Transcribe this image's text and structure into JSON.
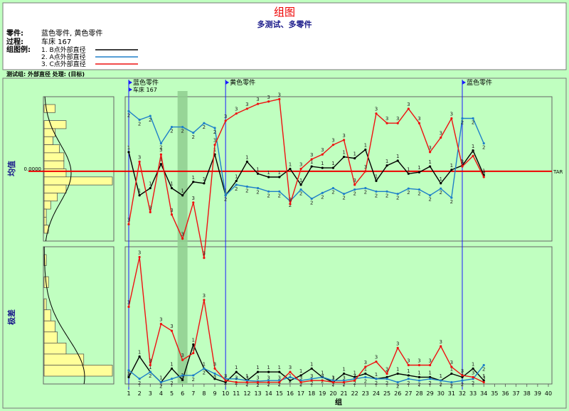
{
  "header": {
    "title": "组图",
    "subtitle": "多测试、多零件",
    "rows": [
      {
        "label": "零件:",
        "value": "蓝色零件, 黄色零件"
      },
      {
        "label": "过程:",
        "value": "车床 167"
      },
      {
        "label": "组图例:",
        "value": ""
      }
    ],
    "legend": [
      {
        "label": "1. B点外部直径",
        "color": "#000000"
      },
      {
        "label": "2. A点外部直径",
        "color": "#1e7fc8"
      },
      {
        "label": "3. C点外部直径",
        "color": "#ee1111"
      }
    ]
  },
  "info_bar": "测试组: 外部直径 处理: (目标)",
  "colors": {
    "frame": "#7a7a7a",
    "header_bg": "#ffffff",
    "plot_bg": "#c0ffc0",
    "highlight": "#8fce8f",
    "target_line": "#ee0000",
    "marker_line": "#1a1aff",
    "histogram": "#ffff99"
  },
  "chart_data": [
    {
      "type": "line",
      "name": "mean-chart",
      "ylabel": "均值",
      "target_value": "0.0000",
      "target_label": "TAR",
      "ylim": [
        -1.45,
        1.55
      ],
      "x": [
        1,
        2,
        3,
        4,
        5,
        6,
        7,
        8,
        9,
        10,
        11,
        12,
        13,
        14,
        15,
        16,
        17,
        18,
        19,
        20,
        21,
        22,
        23,
        24,
        25,
        26,
        27,
        28,
        29,
        30,
        31,
        32,
        33,
        34
      ],
      "series": [
        {
          "name": "1. B点外部直径",
          "point_label": "1",
          "color": "#000000",
          "values": [
            0.4,
            -0.5,
            -0.35,
            0.15,
            -0.35,
            -0.5,
            -0.22,
            -0.25,
            0.35,
            -0.5,
            -0.2,
            0.2,
            -0.05,
            -0.12,
            -0.12,
            0.05,
            -0.28,
            0.1,
            0.07,
            0.07,
            0.3,
            0.27,
            0.45,
            -0.2,
            0.12,
            0.22,
            -0.05,
            -0.02,
            0.1,
            -0.25,
            0.03,
            0.12,
            0.43,
            -0.08
          ]
        },
        {
          "name": "2. A点外部直径",
          "point_label": "2",
          "color": "#1e7fc8",
          "values": [
            1.25,
            1.07,
            1.15,
            0.58,
            0.92,
            0.92,
            0.8,
            1.0,
            0.9,
            -0.5,
            -0.28,
            -0.32,
            -0.35,
            -0.42,
            -0.42,
            -0.62,
            -0.38,
            -0.57,
            -0.45,
            -0.35,
            -0.47,
            -0.38,
            -0.35,
            -0.42,
            -0.42,
            -0.47,
            -0.36,
            -0.38,
            -0.5,
            -0.36,
            -0.55,
            1.1,
            1.1,
            0.58
          ]
        },
        {
          "name": "3. C点外部直径",
          "point_label": "3",
          "color": "#ee1111",
          "values": [
            -1.1,
            0.2,
            -0.85,
            0.35,
            -0.9,
            -1.4,
            -0.65,
            -1.8,
            0.55,
            1.05,
            1.2,
            1.3,
            1.4,
            1.45,
            1.5,
            -0.68,
            0.05,
            0.25,
            0.35,
            0.55,
            0.65,
            -0.28,
            0.0,
            1.2,
            1.0,
            1.0,
            1.3,
            1.0,
            0.4,
            0.7,
            1.1,
            0.1,
            0.32,
            -0.12
          ]
        }
      ]
    },
    {
      "type": "line",
      "name": "range-chart",
      "ylabel": "极差",
      "ylim": [
        0,
        4.0
      ],
      "x": [
        1,
        2,
        3,
        4,
        5,
        6,
        7,
        8,
        9,
        10,
        11,
        12,
        13,
        14,
        15,
        16,
        17,
        18,
        19,
        20,
        21,
        22,
        23,
        24,
        25,
        26,
        27,
        28,
        29,
        30,
        31,
        32,
        33,
        34
      ],
      "series": [
        {
          "name": "1. B点外部直径",
          "point_label": "1",
          "color": "#000000",
          "values": [
            0.2,
            0.8,
            0.35,
            0.05,
            0.45,
            0.12,
            1.15,
            0.45,
            0.15,
            0.05,
            0.35,
            0.1,
            0.35,
            0.35,
            0.35,
            0.1,
            0.25,
            0.45,
            0.2,
            0.05,
            0.3,
            0.2,
            0.3,
            0.15,
            0.2,
            0.3,
            0.25,
            0.2,
            0.2,
            0.1,
            0.3,
            0.2,
            0.45,
            0.1
          ]
        },
        {
          "name": "2. A点外部直径",
          "point_label": "2",
          "color": "#1e7fc8",
          "values": [
            0.4,
            0.15,
            0.35,
            0.05,
            0.15,
            0.25,
            0.25,
            0.45,
            0.3,
            0.15,
            0.15,
            0.1,
            0.08,
            0.1,
            0.1,
            0.2,
            0.1,
            0.15,
            0.2,
            0.1,
            0.1,
            0.15,
            0.2,
            0.15,
            0.15,
            0.05,
            0.15,
            0.1,
            0.15,
            0.1,
            0.05,
            0.1,
            0.15,
            0.55
          ]
        },
        {
          "name": "3. C点外部直径",
          "point_label": "3",
          "color": "#ee1111",
          "values": [
            2.25,
            3.7,
            0.55,
            1.75,
            1.55,
            0.7,
            0.9,
            2.45,
            0.45,
            0.1,
            0.05,
            0.05,
            0.05,
            0.05,
            0.05,
            0.35,
            0.05,
            0.1,
            0.1,
            0.05,
            0.05,
            0.1,
            0.5,
            0.65,
            0.3,
            1.05,
            0.55,
            0.55,
            0.55,
            1.1,
            0.5,
            0.25,
            0.2,
            0.05
          ]
        }
      ]
    }
  ],
  "x_axis": {
    "label": "组",
    "ticks": [
      "1",
      "2",
      "3",
      "4",
      "5",
      "6",
      "7",
      "8",
      "9",
      "10",
      "11",
      "12",
      "13",
      "14",
      "15",
      "16",
      "17",
      "18",
      "19",
      "20",
      "21",
      "22",
      "23",
      "24",
      "25",
      "26",
      "27",
      "28",
      "29",
      "30",
      "31",
      "32",
      "33",
      "34",
      "35",
      "36",
      "37",
      "38",
      "39",
      "40"
    ],
    "range": [
      1,
      40
    ]
  },
  "highlight_group": 6,
  "markers": [
    {
      "group": 1,
      "labels": [
        "蓝色零件",
        "车床 167"
      ]
    },
    {
      "group": 10,
      "labels": [
        "黄色零件"
      ]
    },
    {
      "group": 32,
      "labels": [
        "蓝色零件"
      ]
    }
  ],
  "histograms": {
    "mean": [
      0.5,
      0.0,
      1.0,
      0.5,
      0.4,
      0.7,
      0.9,
      0.9,
      1.0,
      3.1,
      1.0,
      0.6,
      0.3,
      0.1,
      0.1,
      0.2
    ],
    "range": [
      0.1,
      0.0,
      0.2,
      0.0,
      0.1,
      0.3,
      0.5,
      0.6,
      1.0,
      1.8,
      3.1
    ]
  }
}
